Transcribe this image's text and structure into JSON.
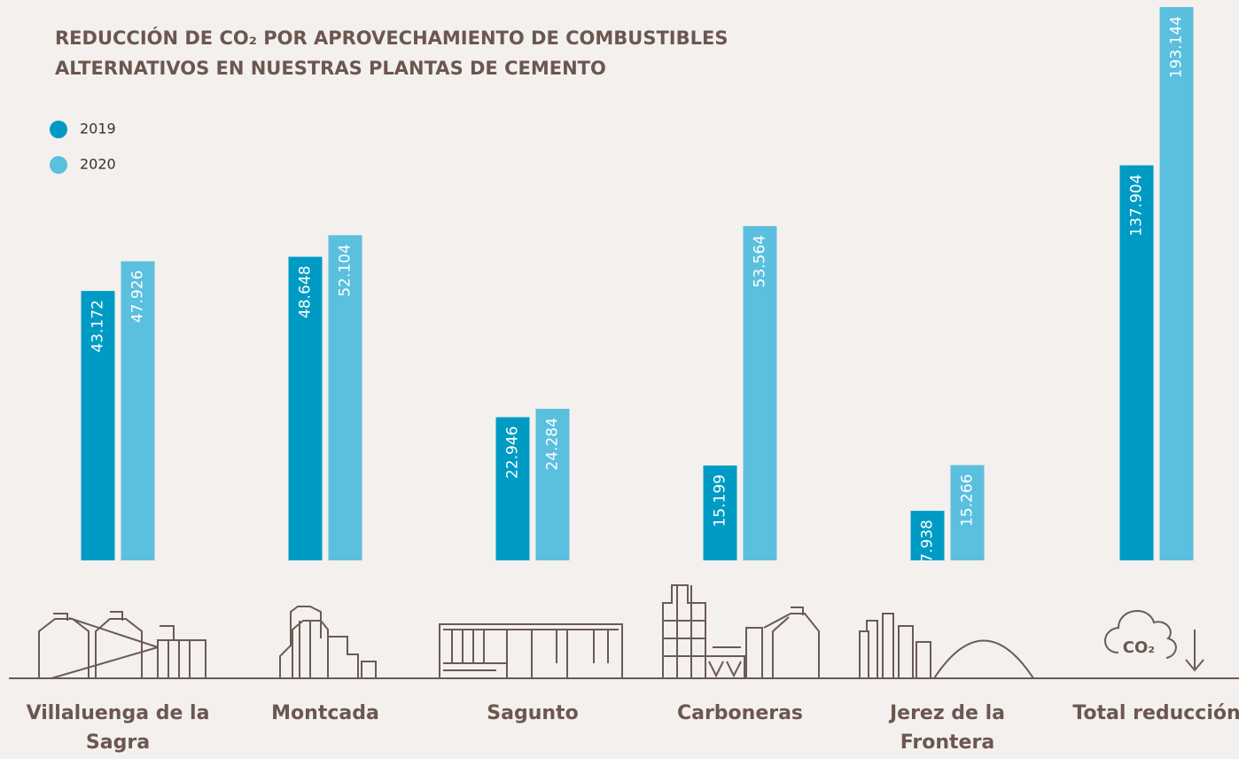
{
  "chart_data": [
    {
      "type": "bar",
      "title": "REDUCCIÓN DE CO₂ POR APROVECHAMIENTO DE COMBUSTIBLES ALTERNATIVOS EN NUESTRAS PLANTAS DE CEMENTO",
      "categories": [
        "Villaluenga de la Sagra",
        "Montcada",
        "Sagunto",
        "Carboneras",
        "Jerez de la Frontera"
      ],
      "series": [
        {
          "name": "2019",
          "color": "#009bc4",
          "values": [
            43172,
            48648,
            22946,
            15199,
            7938
          ],
          "value_labels": [
            "43.172",
            "48.648",
            "22.946",
            "15.199",
            "7.938"
          ]
        },
        {
          "name": "2020",
          "color": "#5bbfde",
          "values": [
            47926,
            52104,
            24284,
            53564,
            15266
          ],
          "value_labels": [
            "47.926",
            "52.104",
            "24.284",
            "53.564",
            "15.266"
          ]
        }
      ]
    },
    {
      "type": "bar",
      "categories": [
        "Total reducción"
      ],
      "annotation": "CO₂",
      "series": [
        {
          "color": "#009bc4",
          "values": [
            137904
          ],
          "value_labels": [
            "137.904"
          ]
        },
        {
          "color": "#5bbfde",
          "values": [
            193144
          ],
          "value_labels": [
            "193.144"
          ]
        }
      ]
    }
  ]
}
